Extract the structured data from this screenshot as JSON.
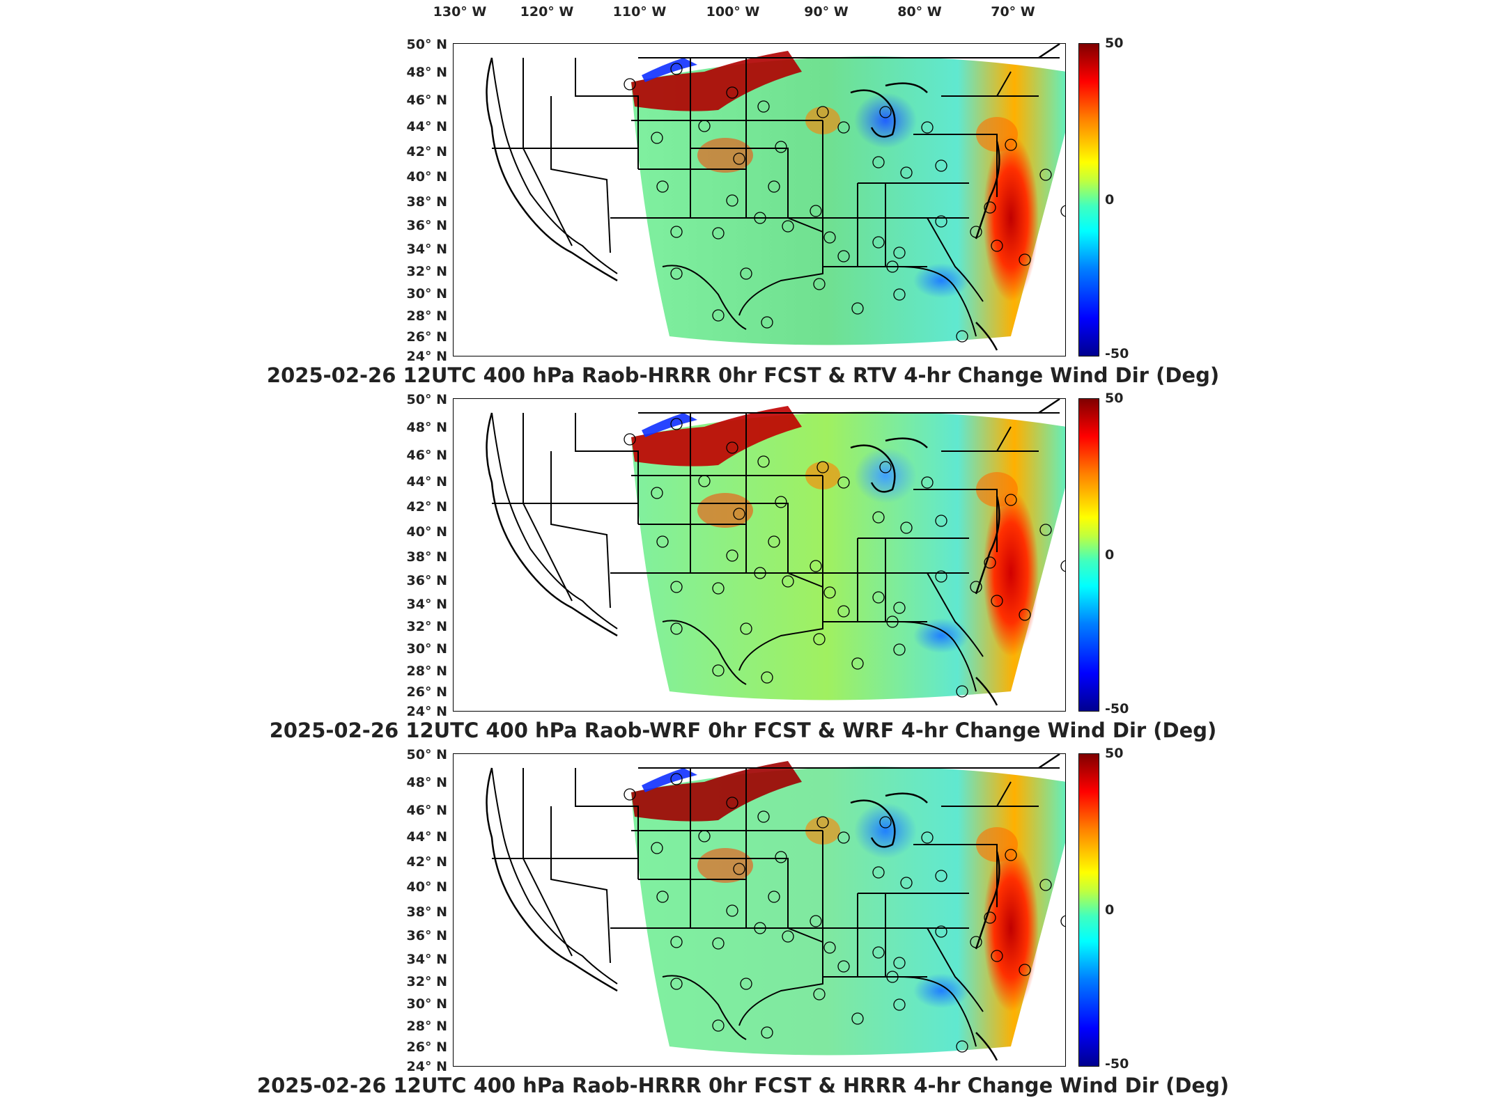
{
  "longitude_labels": [
    "130° W",
    "120° W",
    "110° W",
    "100° W",
    "90° W",
    "80° W",
    "70° W"
  ],
  "latitude_labels": [
    "50° N",
    "48° N",
    "46° N",
    "44° N",
    "42° N",
    "40° N",
    "38° N",
    "36° N",
    "34° N",
    "32° N",
    "30° N",
    "28° N",
    "26° N",
    "24° N"
  ],
  "colorbar": {
    "max_label": "50",
    "mid_label": "0",
    "min_label": "-50",
    "colormap": [
      "#00008f",
      "#0000ff",
      "#00ffff",
      "#ffff00",
      "#ff0000",
      "#800000"
    ]
  },
  "panels": [
    {
      "title": "2025-02-26 12UTC 400 hPa Raob-HRRR 0hr FCST & RTV 4-hr Change Wind Dir (Deg)"
    },
    {
      "title": "2025-02-26 12UTC 400 hPa Raob-WRF 0hr FCST & WRF 4-hr Change Wind Dir (Deg)"
    },
    {
      "title": "2025-02-26 12UTC 400 hPa Raob-HRRR 0hr FCST & HRRR 4-hr Change Wind Dir (Deg)"
    }
  ]
}
